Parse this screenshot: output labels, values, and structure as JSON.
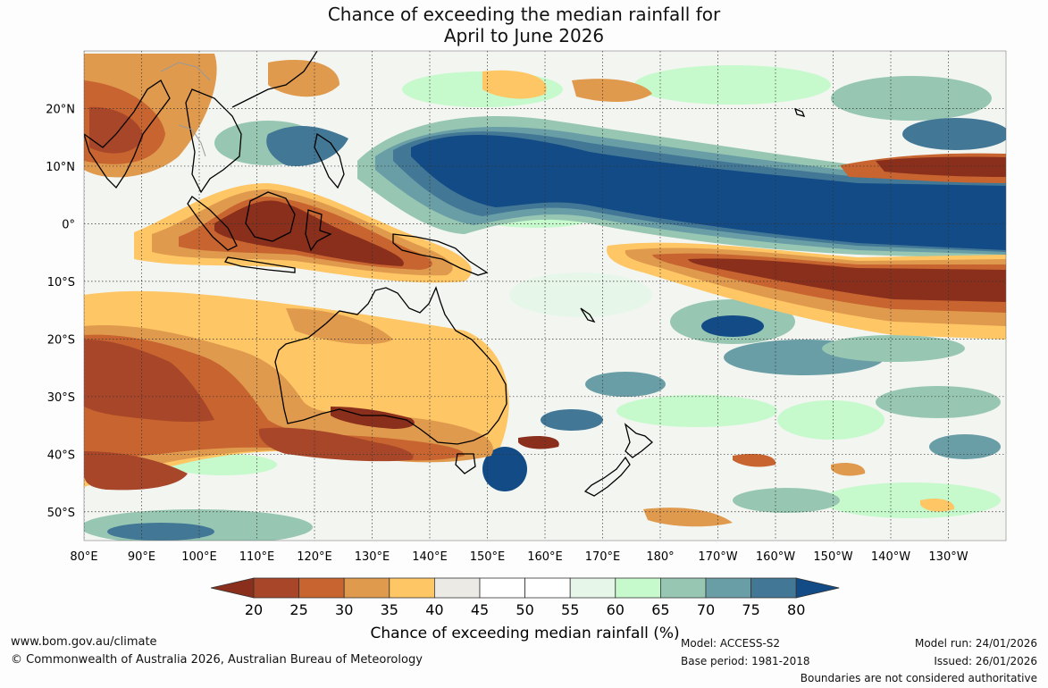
{
  "title": {
    "line1": "Chance of exceeding the median rainfall for",
    "line2": "April to June 2026"
  },
  "map": {
    "lat_labels": [
      "20°N",
      "10°N",
      "0°",
      "10°S",
      "20°S",
      "30°S",
      "40°S",
      "50°S"
    ],
    "lat_values": [
      20,
      10,
      0,
      -10,
      -20,
      -30,
      -40,
      -50
    ],
    "lon_labels": [
      "80°E",
      "90°E",
      "100°E",
      "110°E",
      "120°E",
      "130°E",
      "140°E",
      "150°E",
      "160°E",
      "170°E",
      "180°",
      "170°W",
      "160°W",
      "150°W",
      "140°W",
      "130°W"
    ],
    "lon_values": [
      80,
      90,
      100,
      110,
      120,
      130,
      140,
      150,
      160,
      170,
      180,
      190,
      200,
      210,
      220,
      230
    ],
    "lat_range": [
      -55,
      30
    ],
    "lon_range": [
      80,
      240
    ]
  },
  "colorbar": {
    "ticks": [
      "20",
      "25",
      "30",
      "35",
      "40",
      "45",
      "50",
      "55",
      "60",
      "65",
      "70",
      "75",
      "80"
    ],
    "colors": [
      "#8a2f1c",
      "#a8462a",
      "#c7642f",
      "#e09a4e",
      "#fec664",
      "#eceae4",
      "#ffffff",
      "#ffffff",
      "#e6f6e8",
      "#c6f9cb",
      "#97c7b2",
      "#6a9ea6",
      "#427796",
      "#124b86"
    ],
    "caption": "Chance of exceeding median rainfall (%)"
  },
  "footer": {
    "url": "www.bom.gov.au/climate",
    "copyright": "© Commonwealth of Australia 2026, Australian Bureau of Meteorology",
    "model": "Model: ACCESS-S2",
    "base_period": "Base period: 1981-2018",
    "model_run": "Model run: 24/01/2026",
    "issued": "Issued: 26/01/2026",
    "disclaimer": "Boundaries are not considered authoritative"
  }
}
